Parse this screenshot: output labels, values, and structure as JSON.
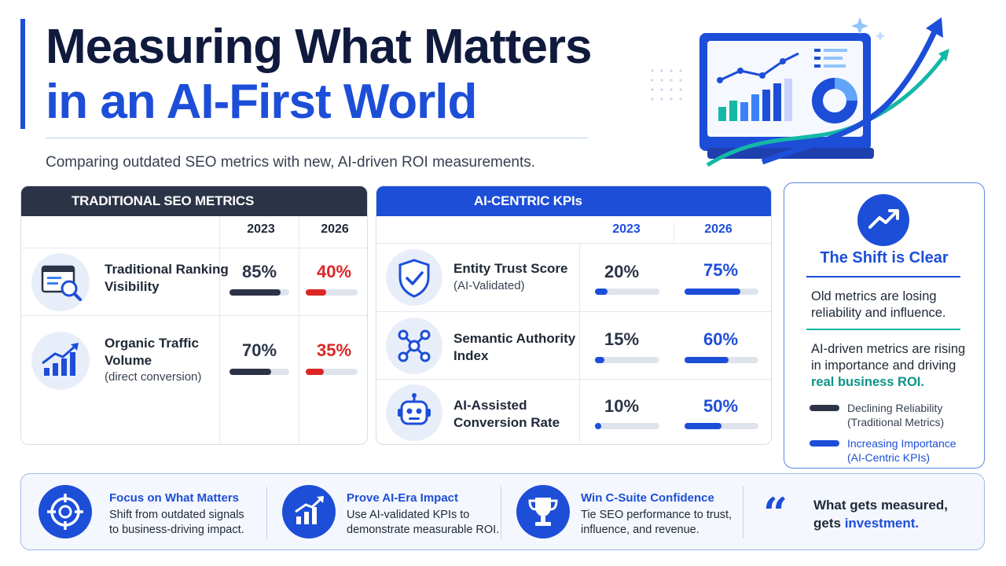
{
  "header": {
    "title_line1": "Measuring What Matters",
    "title_line2": "in an AI-First World",
    "subtitle": "Comparing outdated SEO metrics with new, AI-driven ROI measurements."
  },
  "traditional": {
    "heading": "TRADITIONAL SEO METRICS",
    "col_2023": "2023",
    "col_2026": "2026",
    "rows": [
      {
        "name_line1": "Traditional Ranking",
        "name_line2": "Visibility",
        "sub": "",
        "icon": "search-report-icon",
        "v2023": "85%",
        "v2026": "40%",
        "f2023": 0.85,
        "f2026": 0.4
      },
      {
        "name_line1": "Organic Traffic",
        "name_line2": "Volume",
        "sub": "(direct conversion)",
        "icon": "growth-chart-icon",
        "v2023": "70%",
        "v2026": "35%",
        "f2023": 0.7,
        "f2026": 0.35
      }
    ]
  },
  "ai_kpis": {
    "heading": "AI-CENTRIC KPIs",
    "col_2023": "2023",
    "col_2026": "2026",
    "rows": [
      {
        "name_line1": "Entity Trust Score",
        "name_line2": "",
        "sub": "(AI-Validated)",
        "icon": "shield-check-icon",
        "v2023": "20%",
        "v2026": "75%",
        "f2023": 0.2,
        "f2026": 0.75
      },
      {
        "name_line1": "Semantic Authority",
        "name_line2": "Index",
        "sub": "",
        "icon": "network-icon",
        "v2023": "15%",
        "v2026": "60%",
        "f2023": 0.15,
        "f2026": 0.6
      },
      {
        "name_line1": "AI-Assisted",
        "name_line2": "Conversion Rate",
        "sub": "",
        "icon": "robot-icon",
        "v2023": "10%",
        "v2026": "50%",
        "f2023": 0.1,
        "f2026": 0.5
      }
    ]
  },
  "shift": {
    "title": "The Shift is Clear",
    "old_text": "Old metrics are losing reliability and influence.",
    "new_text_prefix": "AI-driven metrics are rising in importance and driving ",
    "new_text_highlight": "real business ROI.",
    "legend_declining": "Declining Reliability (Traditional Metrics)",
    "legend_increasing": "Increasing Importance (AI-Centric KPIs)"
  },
  "footer": {
    "items": [
      {
        "heading": "Focus on What Matters",
        "text_line1": "Shift from outdated signals",
        "text_line2": "to business-driving impact.",
        "icon": "target-icon"
      },
      {
        "heading": "Prove AI-Era Impact",
        "text_line1": "Use AI-validated KPIs to",
        "text_line2": "demonstrate measurable ROI.",
        "icon": "growth-chart-icon"
      },
      {
        "heading": "Win C-Suite Confidence",
        "text_line1": "Tie SEO performance to trust,",
        "text_line2": "influence, and revenue.",
        "icon": "trophy-icon"
      }
    ],
    "quote_line1": "What gets measured,",
    "quote_line2_prefix": "gets ",
    "quote_line2_highlight": "investment."
  },
  "colors": {
    "navy": "#0f1a3d",
    "blue": "#1d4ed8",
    "dark_slate": "#2b3447",
    "red": "#dc2626",
    "teal": "#14b8a6"
  }
}
